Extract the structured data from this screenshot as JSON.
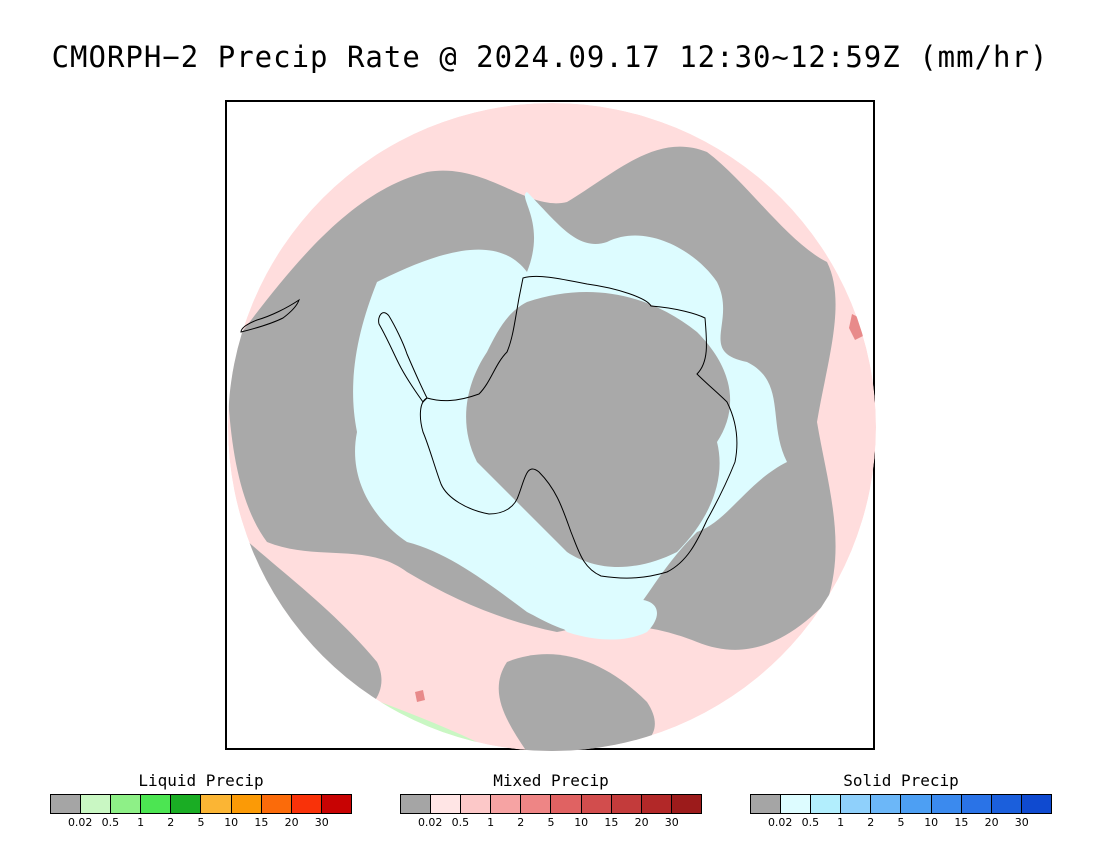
{
  "title": "CMORPH−2 Precip Rate @ 2024.09.17 12:30∼12:59Z (mm/hr)",
  "map": {
    "projection": "south-polar-stereographic",
    "colors": {
      "no_rain": "#a9a9a9",
      "mixed_light": "#ffdddd",
      "solid_light": "#ddfcff",
      "liquid_light": "#c9f7c3",
      "mixed_heavy": "#e88a8a",
      "coastline": "#000000"
    }
  },
  "legends": [
    {
      "title": "Liquid Precip",
      "colors": [
        "#a5a5a5",
        "#c9f7c3",
        "#8ef087",
        "#4ce552",
        "#1aad24",
        "#fbb534",
        "#fb9a06",
        "#fb6b0a",
        "#f93209",
        "#c80303"
      ],
      "labels": [
        "0.02",
        "0.5",
        "1",
        "2",
        "5",
        "10",
        "15",
        "20",
        "30"
      ]
    },
    {
      "title": "Mixed Precip",
      "colors": [
        "#a5a5a5",
        "#ffe5e5",
        "#fcc8c8",
        "#f6a3a3",
        "#ee8585",
        "#e06262",
        "#d24d4d",
        "#c33b3b",
        "#b22828",
        "#9c1b1b"
      ],
      "labels": [
        "0.02",
        "0.5",
        "1",
        "2",
        "5",
        "10",
        "15",
        "20",
        "30"
      ]
    },
    {
      "title": "Solid Precip",
      "colors": [
        "#a5a5a5",
        "#ddfcff",
        "#b2eefd",
        "#8fd0fb",
        "#6cb7f8",
        "#4d9ff3",
        "#3b8aee",
        "#2a73e7",
        "#1b5fdc",
        "#0f4ad0"
      ],
      "labels": [
        "0.02",
        "0.5",
        "1",
        "2",
        "5",
        "10",
        "15",
        "20",
        "30"
      ]
    }
  ]
}
